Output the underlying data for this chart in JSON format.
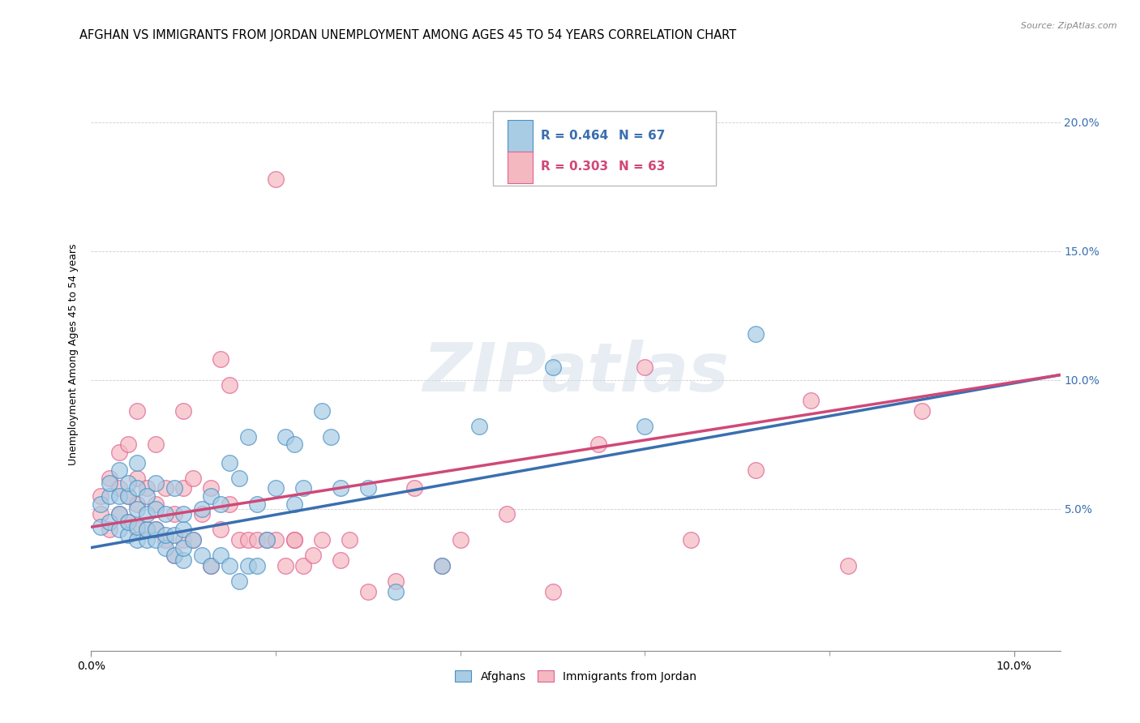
{
  "title": "AFGHAN VS IMMIGRANTS FROM JORDAN UNEMPLOYMENT AMONG AGES 45 TO 54 YEARS CORRELATION CHART",
  "source": "Source: ZipAtlas.com",
  "ylabel": "Unemployment Among Ages 45 to 54 years",
  "xlim": [
    0.0,
    0.105
  ],
  "ylim": [
    -0.005,
    0.225
  ],
  "xticks": [
    0.0,
    0.1
  ],
  "xtick_labels": [
    "0.0%",
    "10.0%"
  ],
  "yticks": [
    0.0,
    0.05,
    0.1,
    0.15,
    0.2
  ],
  "ytick_labels": [
    "",
    "5.0%",
    "10.0%",
    "15.0%",
    "20.0%"
  ],
  "legend_labels": [
    "Afghans",
    "Immigrants from Jordan"
  ],
  "legend_R": [
    "R = 0.464",
    "R = 0.303"
  ],
  "legend_N": [
    "N = 67",
    "N = 63"
  ],
  "blue_color": "#a8cce4",
  "pink_color": "#f4b8c1",
  "blue_edge_color": "#4a90c4",
  "pink_edge_color": "#e06090",
  "blue_line_color": "#3a6fb0",
  "pink_line_color": "#d04878",
  "watermark": "ZIPatlas",
  "title_fontsize": 10.5,
  "axis_label_fontsize": 9,
  "tick_fontsize": 10,
  "blue_scatter_x": [
    0.001,
    0.001,
    0.002,
    0.002,
    0.002,
    0.003,
    0.003,
    0.003,
    0.003,
    0.004,
    0.004,
    0.004,
    0.004,
    0.005,
    0.005,
    0.005,
    0.005,
    0.005,
    0.006,
    0.006,
    0.006,
    0.006,
    0.007,
    0.007,
    0.007,
    0.007,
    0.008,
    0.008,
    0.008,
    0.009,
    0.009,
    0.009,
    0.01,
    0.01,
    0.01,
    0.01,
    0.011,
    0.012,
    0.012,
    0.013,
    0.013,
    0.014,
    0.014,
    0.015,
    0.015,
    0.016,
    0.016,
    0.017,
    0.017,
    0.018,
    0.018,
    0.019,
    0.02,
    0.021,
    0.022,
    0.022,
    0.023,
    0.025,
    0.026,
    0.027,
    0.03,
    0.033,
    0.038,
    0.042,
    0.05,
    0.06,
    0.072
  ],
  "blue_scatter_y": [
    0.043,
    0.052,
    0.045,
    0.055,
    0.06,
    0.042,
    0.048,
    0.055,
    0.065,
    0.04,
    0.045,
    0.055,
    0.06,
    0.038,
    0.043,
    0.05,
    0.058,
    0.068,
    0.038,
    0.042,
    0.048,
    0.055,
    0.038,
    0.042,
    0.05,
    0.06,
    0.035,
    0.04,
    0.048,
    0.032,
    0.04,
    0.058,
    0.03,
    0.035,
    0.042,
    0.048,
    0.038,
    0.032,
    0.05,
    0.028,
    0.055,
    0.032,
    0.052,
    0.028,
    0.068,
    0.022,
    0.062,
    0.028,
    0.078,
    0.028,
    0.052,
    0.038,
    0.058,
    0.078,
    0.052,
    0.075,
    0.058,
    0.088,
    0.078,
    0.058,
    0.058,
    0.018,
    0.028,
    0.082,
    0.105,
    0.082,
    0.118
  ],
  "pink_scatter_x": [
    0.001,
    0.001,
    0.002,
    0.002,
    0.003,
    0.003,
    0.003,
    0.004,
    0.004,
    0.004,
    0.005,
    0.005,
    0.005,
    0.005,
    0.006,
    0.006,
    0.007,
    0.007,
    0.007,
    0.008,
    0.008,
    0.009,
    0.009,
    0.01,
    0.01,
    0.01,
    0.011,
    0.011,
    0.012,
    0.013,
    0.013,
    0.014,
    0.015,
    0.015,
    0.016,
    0.017,
    0.018,
    0.019,
    0.02,
    0.021,
    0.022,
    0.023,
    0.024,
    0.025,
    0.027,
    0.028,
    0.03,
    0.033,
    0.035,
    0.038,
    0.04,
    0.045,
    0.05,
    0.055,
    0.06,
    0.065,
    0.072,
    0.078,
    0.082,
    0.09,
    0.02,
    0.014,
    0.022
  ],
  "pink_scatter_y": [
    0.048,
    0.055,
    0.042,
    0.062,
    0.048,
    0.058,
    0.072,
    0.045,
    0.055,
    0.075,
    0.042,
    0.052,
    0.062,
    0.088,
    0.042,
    0.058,
    0.042,
    0.052,
    0.075,
    0.038,
    0.058,
    0.032,
    0.048,
    0.038,
    0.058,
    0.088,
    0.038,
    0.062,
    0.048,
    0.028,
    0.058,
    0.042,
    0.052,
    0.098,
    0.038,
    0.038,
    0.038,
    0.038,
    0.038,
    0.028,
    0.038,
    0.028,
    0.032,
    0.038,
    0.03,
    0.038,
    0.018,
    0.022,
    0.058,
    0.028,
    0.038,
    0.048,
    0.018,
    0.075,
    0.105,
    0.038,
    0.065,
    0.092,
    0.028,
    0.088,
    0.178,
    0.108,
    0.038
  ],
  "blue_line_x": [
    0.0,
    0.105
  ],
  "blue_line_y": [
    0.035,
    0.102
  ],
  "pink_line_x": [
    0.0,
    0.105
  ],
  "pink_line_y": [
    0.043,
    0.102
  ]
}
